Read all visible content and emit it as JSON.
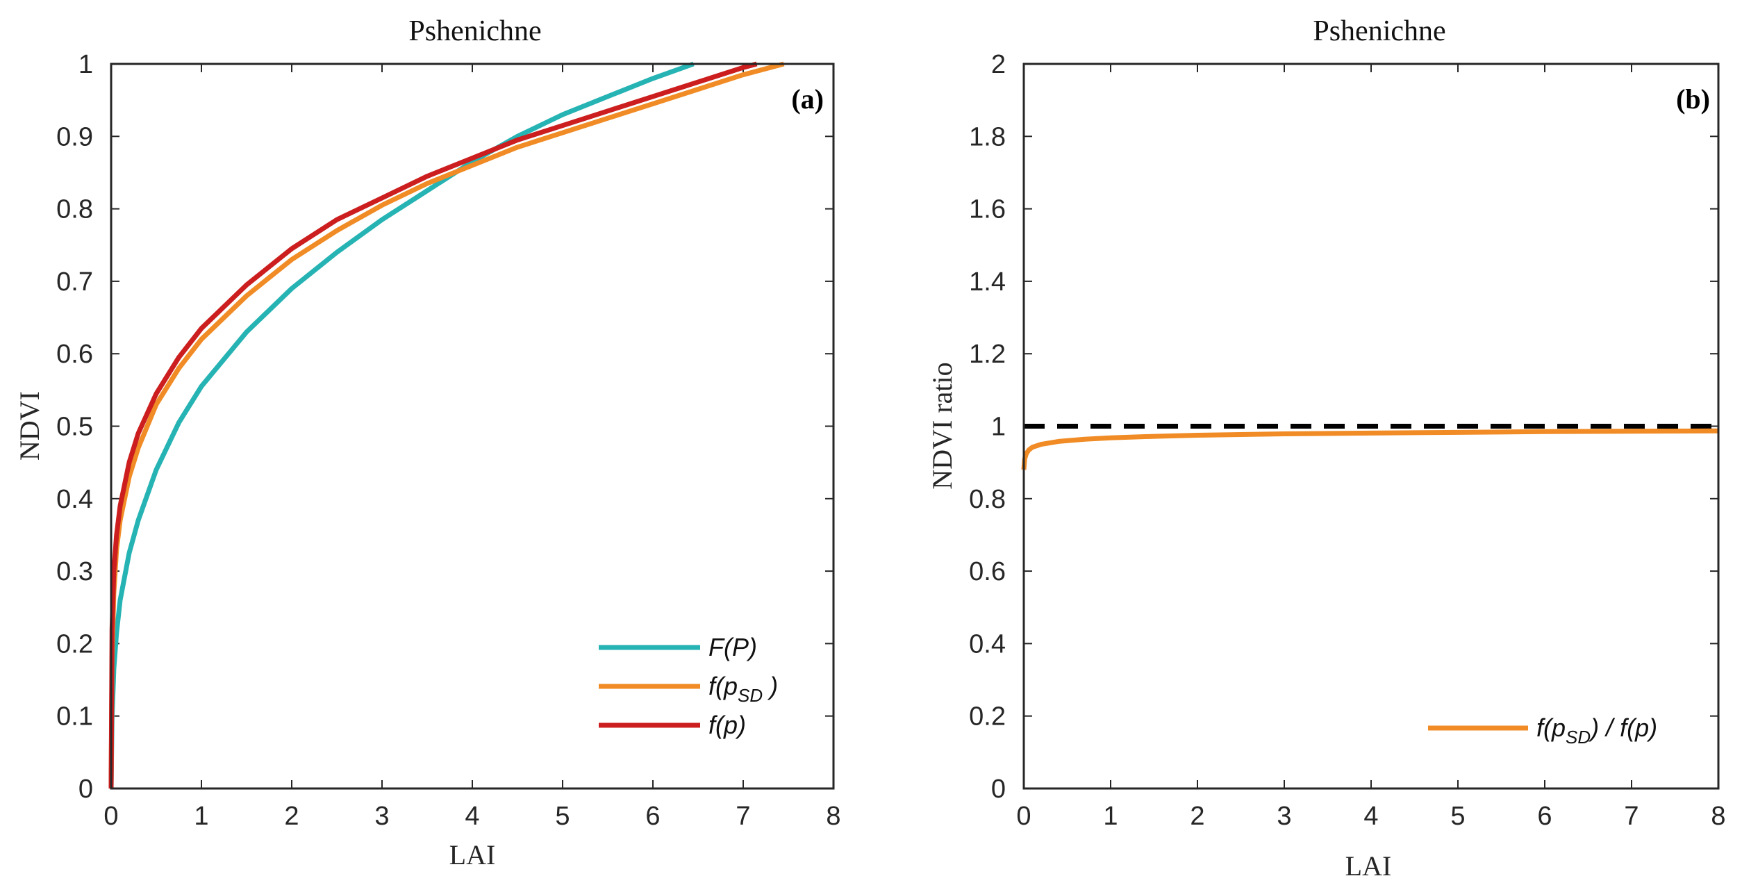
{
  "chart_data": [
    {
      "type": "line",
      "title": "Pshenichne",
      "panel_label": "(a)",
      "xlabel": "LAI",
      "ylabel": "NDVI",
      "xlim": [
        0,
        8
      ],
      "ylim": [
        0,
        1
      ],
      "xticks": [
        0,
        1,
        2,
        3,
        4,
        5,
        6,
        7,
        8
      ],
      "yticks": [
        0,
        0.1,
        0.2,
        0.3,
        0.4,
        0.5,
        0.6,
        0.7,
        0.8,
        0.9,
        1
      ],
      "legend_position": "bottom-right",
      "series": [
        {
          "name": "F(P)",
          "legend_main": "F(P)",
          "legend_sub": "",
          "legend_tail": "",
          "color": "#26b3b3",
          "x": [
            0,
            0.01,
            0.03,
            0.06,
            0.1,
            0.2,
            0.3,
            0.5,
            0.75,
            1,
            1.5,
            2,
            2.5,
            3,
            3.5,
            4,
            4.5,
            5,
            5.5,
            6,
            6.45
          ],
          "y": [
            0,
            0.095,
            0.165,
            0.215,
            0.26,
            0.325,
            0.37,
            0.44,
            0.505,
            0.555,
            0.63,
            0.69,
            0.74,
            0.785,
            0.825,
            0.865,
            0.9,
            0.93,
            0.955,
            0.98,
            1.0
          ]
        },
        {
          "name": "f(pSD)",
          "legend_main": "f(p",
          "legend_sub": "SD",
          "legend_tail": " )",
          "color": "#f08b25",
          "x": [
            0,
            0.01,
            0.03,
            0.06,
            0.1,
            0.2,
            0.3,
            0.5,
            0.75,
            1,
            1.5,
            2,
            2.5,
            3,
            3.5,
            4,
            4.5,
            5,
            5.5,
            6,
            6.5,
            7,
            7.45
          ],
          "y": [
            0,
            0.18,
            0.27,
            0.33,
            0.37,
            0.43,
            0.47,
            0.53,
            0.58,
            0.62,
            0.68,
            0.73,
            0.77,
            0.805,
            0.835,
            0.86,
            0.885,
            0.905,
            0.925,
            0.945,
            0.965,
            0.985,
            1.0
          ]
        },
        {
          "name": "f(p)",
          "legend_main": "f(p)",
          "legend_sub": "",
          "legend_tail": "",
          "color": "#cc1e1e",
          "x": [
            0,
            0.01,
            0.03,
            0.06,
            0.1,
            0.2,
            0.3,
            0.5,
            0.75,
            1,
            1.5,
            2,
            2.5,
            3,
            3.5,
            4,
            4.5,
            5,
            5.5,
            6,
            6.5,
            7,
            7.15
          ],
          "y": [
            0,
            0.22,
            0.3,
            0.35,
            0.39,
            0.45,
            0.49,
            0.545,
            0.595,
            0.635,
            0.695,
            0.745,
            0.785,
            0.815,
            0.845,
            0.87,
            0.895,
            0.915,
            0.935,
            0.955,
            0.975,
            0.995,
            1.0
          ]
        }
      ]
    },
    {
      "type": "line",
      "title": "Pshenichne",
      "panel_label": "(b)",
      "xlabel": "LAI",
      "ylabel": "NDVI ratio",
      "xlim": [
        0,
        8
      ],
      "ylim": [
        0,
        2
      ],
      "xticks": [
        0,
        1,
        2,
        3,
        4,
        5,
        6,
        7,
        8
      ],
      "yticks": [
        0,
        0.2,
        0.4,
        0.6,
        0.8,
        1,
        1.2,
        1.4,
        1.6,
        1.8,
        2
      ],
      "legend_position": "bottom-right",
      "reference_line": {
        "y": 1,
        "style": "dashed",
        "color": "#000000"
      },
      "series": [
        {
          "name": "f(pSD) / f(p)",
          "legend_main": "f(p",
          "legend_sub": "SD",
          "legend_tail": ") / f(p)",
          "color": "#f08b25",
          "x": [
            0,
            0.01,
            0.03,
            0.06,
            0.1,
            0.2,
            0.4,
            0.7,
            1,
            1.5,
            2,
            3,
            4,
            5,
            6,
            7,
            8
          ],
          "y": [
            0.88,
            0.91,
            0.925,
            0.935,
            0.942,
            0.95,
            0.958,
            0.964,
            0.968,
            0.972,
            0.975,
            0.979,
            0.981,
            0.983,
            0.985,
            0.986,
            0.987
          ]
        }
      ]
    }
  ]
}
